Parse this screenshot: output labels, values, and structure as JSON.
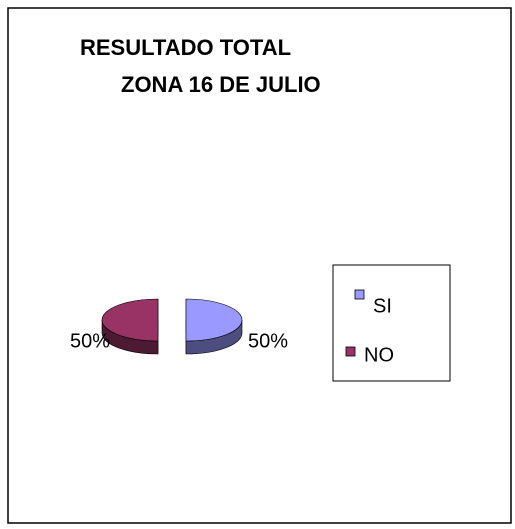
{
  "chart_data": {
    "type": "pie",
    "title": [
      "RESULTADO TOTAL",
      "ZONA 16 DE JULIO"
    ],
    "categories": [
      "SI",
      "NO"
    ],
    "values": [
      50,
      50
    ],
    "value_labels": [
      "50%",
      "50%"
    ],
    "colors": [
      "#9999ff",
      "#993366"
    ],
    "legend": "right",
    "style": "3d-exploded"
  }
}
